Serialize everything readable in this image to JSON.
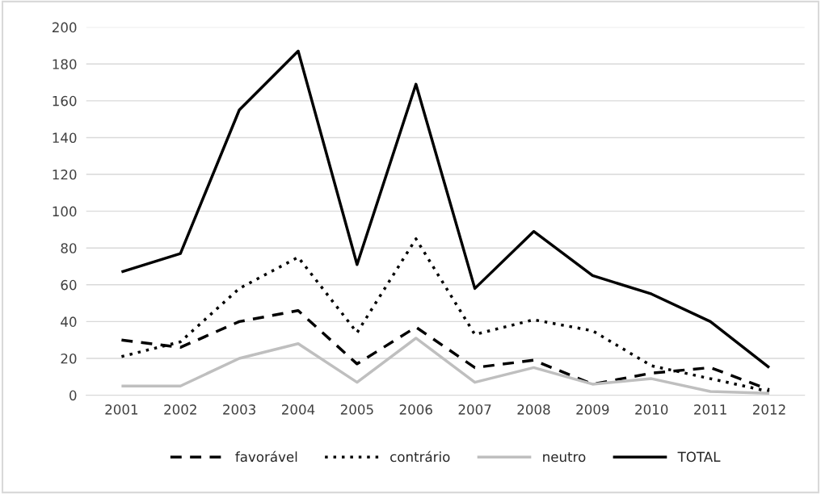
{
  "chart_data": {
    "type": "line",
    "categories": [
      "2001",
      "2002",
      "2003",
      "2004",
      "2005",
      "2006",
      "2007",
      "2008",
      "2009",
      "2010",
      "2011",
      "2012"
    ],
    "series": [
      {
        "name": "favorável",
        "color": "#000000",
        "line_style": "dashed",
        "values": [
          30,
          26,
          40,
          46,
          17,
          37,
          15,
          19,
          6,
          12,
          15,
          3
        ]
      },
      {
        "name": "contrário",
        "color": "#000000",
        "line_style": "dotted",
        "values": [
          21,
          29,
          58,
          75,
          34,
          85,
          33,
          41,
          35,
          16,
          9,
          2
        ]
      },
      {
        "name": "neutro",
        "color": "#bfbfbf",
        "line_style": "solid",
        "values": [
          5,
          5,
          20,
          28,
          7,
          31,
          7,
          15,
          6,
          9,
          2,
          1
        ]
      },
      {
        "name": "TOTAL",
        "color": "#000000",
        "line_style": "solid",
        "values": [
          67,
          77,
          155,
          187,
          71,
          169,
          58,
          89,
          65,
          55,
          40,
          15
        ]
      }
    ],
    "ylim": [
      0,
      200
    ],
    "yticks": [
      0,
      20,
      40,
      60,
      80,
      100,
      120,
      140,
      160,
      180,
      200
    ],
    "grid": "y",
    "legend": "bottom",
    "marker": "none"
  }
}
